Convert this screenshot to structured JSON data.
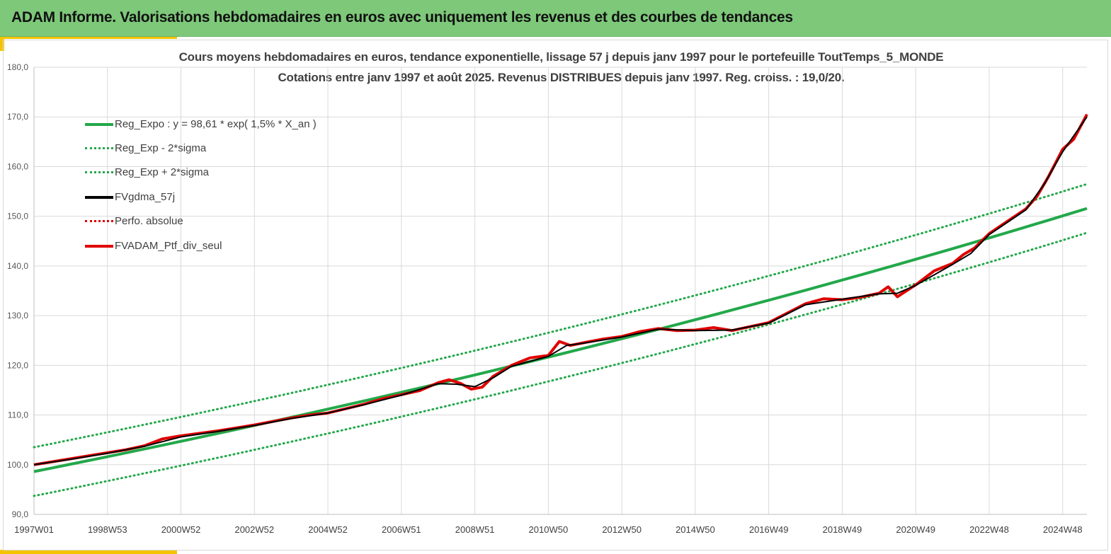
{
  "header": {
    "title": "ADAM Informe. Valorisations hebdomadaires en euros avec uniquement les revenus et des courbes de tendances"
  },
  "colors": {
    "header_bg": "#7ec87a",
    "accent": "#f4c400",
    "reg_green": "#22a84a",
    "series_red": "#e00000",
    "series_black": "#000000",
    "grid": "#d9d9d9"
  },
  "chart_data": {
    "type": "line",
    "title_line1": "Cours moyens hebdomadaires  en euros, tendance exponentielle, lissage 57 j depuis janv 1997 pour le portefeuille ToutTemps_5_MONDE",
    "title_line2": "Cotations  entre janv 1997 et août 2025. Revenus DISTRIBUES depuis janv 1997. Reg. croiss. : 19,0/20.",
    "x_tick_labels": [
      "1997W01",
      "1998W53",
      "2000W52",
      "2002W52",
      "2004W52",
      "2006W51",
      "2008W51",
      "2010W50",
      "2012W50",
      "2014W50",
      "2016W49",
      "2018W49",
      "2020W49",
      "2022W48",
      "2024W48"
    ],
    "x_tick_years": [
      1997.0,
      1999.0,
      2001.0,
      2003.0,
      2005.0,
      2007.0,
      2009.0,
      2011.0,
      2013.0,
      2015.0,
      2017.0,
      2019.0,
      2021.0,
      2023.0,
      2025.0
    ],
    "x_range": [
      1997.0,
      2025.66
    ],
    "y_tick_labels": [
      "90,0",
      "100,0",
      "110,0",
      "120,0",
      "130,0",
      "140,0",
      "150,0",
      "160,0",
      "170,0",
      "180,0"
    ],
    "ylim": [
      90,
      180
    ],
    "grid": true,
    "legend_position": "upper-left",
    "regression": {
      "a": 98.61,
      "rate": 0.015,
      "sigma_offset": 4.9
    },
    "legend": [
      {
        "label": "Reg_Expo : y = 98,61 * exp( 1,5% *  X_an )",
        "style": "solid-green"
      },
      {
        "label": "Reg_Exp - 2*sigma",
        "style": "dotted-green"
      },
      {
        "label": "Reg_Exp + 2*sigma",
        "style": "dotted-green"
      },
      {
        "label": "FVgdma_57j",
        "style": "solid-black"
      },
      {
        "label": "Perfo. absolue",
        "style": "dotted-red"
      },
      {
        "label": "FVADAM_Ptf_div_seul",
        "style": "solid-red"
      }
    ],
    "series": [
      {
        "name": "FVADAM_Ptf_div_seul",
        "x": [
          1997.0,
          1997.5,
          1998.0,
          1998.5,
          1999.0,
          1999.5,
          2000.0,
          2000.5,
          2001.0,
          2001.5,
          2002.0,
          2002.5,
          2003.0,
          2003.5,
          2004.0,
          2004.5,
          2005.0,
          2005.5,
          2006.0,
          2006.5,
          2007.0,
          2007.5,
          2008.0,
          2008.3,
          2008.6,
          2008.9,
          2009.2,
          2009.5,
          2010.0,
          2010.5,
          2011.0,
          2011.3,
          2011.6,
          2012.0,
          2012.5,
          2013.0,
          2013.5,
          2014.0,
          2014.5,
          2015.0,
          2015.5,
          2016.0,
          2016.5,
          2017.0,
          2017.5,
          2018.0,
          2018.5,
          2019.0,
          2019.5,
          2020.0,
          2020.25,
          2020.5,
          2021.0,
          2021.5,
          2022.0,
          2022.3,
          2022.6,
          2023.0,
          2023.5,
          2024.0,
          2024.3,
          2024.6,
          2025.0,
          2025.3,
          2025.66
        ],
        "values": [
          100.0,
          100.6,
          101.2,
          101.8,
          102.4,
          103.0,
          103.8,
          105.2,
          105.8,
          106.3,
          106.8,
          107.4,
          108.0,
          108.7,
          109.4,
          110.0,
          110.4,
          111.3,
          112.2,
          113.3,
          114.1,
          114.9,
          116.5,
          117.1,
          116.4,
          115.2,
          115.6,
          117.8,
          120.0,
          121.5,
          122.0,
          124.8,
          124.0,
          124.6,
          125.3,
          125.8,
          126.8,
          127.4,
          127.0,
          127.1,
          127.6,
          127.0,
          127.8,
          128.6,
          130.5,
          132.4,
          133.4,
          133.2,
          133.7,
          134.5,
          135.8,
          133.8,
          136.2,
          139.0,
          140.5,
          142.3,
          143.6,
          146.5,
          149.0,
          151.5,
          154.0,
          157.8,
          163.5,
          165.5,
          170.5
        ]
      },
      {
        "name": "FVgdma_57j",
        "x": [
          1997.0,
          1998.0,
          1999.0,
          2000.0,
          2001.0,
          2002.0,
          2003.0,
          2004.0,
          2005.0,
          2006.0,
          2007.0,
          2008.0,
          2008.5,
          2009.0,
          2009.5,
          2010.0,
          2011.0,
          2011.5,
          2012.0,
          2013.0,
          2014.0,
          2015.0,
          2016.0,
          2017.0,
          2018.0,
          2019.0,
          2020.0,
          2020.5,
          2021.0,
          2022.0,
          2022.5,
          2023.0,
          2024.0,
          2024.5,
          2025.0,
          2025.66
        ],
        "values": [
          100.0,
          101.1,
          102.3,
          103.7,
          105.6,
          106.7,
          107.9,
          109.3,
          110.4,
          112.1,
          114.0,
          116.3,
          116.2,
          115.7,
          117.5,
          119.8,
          121.8,
          124.0,
          124.5,
          125.7,
          127.3,
          127.0,
          127.1,
          128.5,
          132.2,
          133.3,
          134.4,
          134.5,
          136.1,
          140.3,
          142.5,
          146.3,
          151.3,
          156.5,
          163.0,
          170.0
        ]
      }
    ]
  }
}
